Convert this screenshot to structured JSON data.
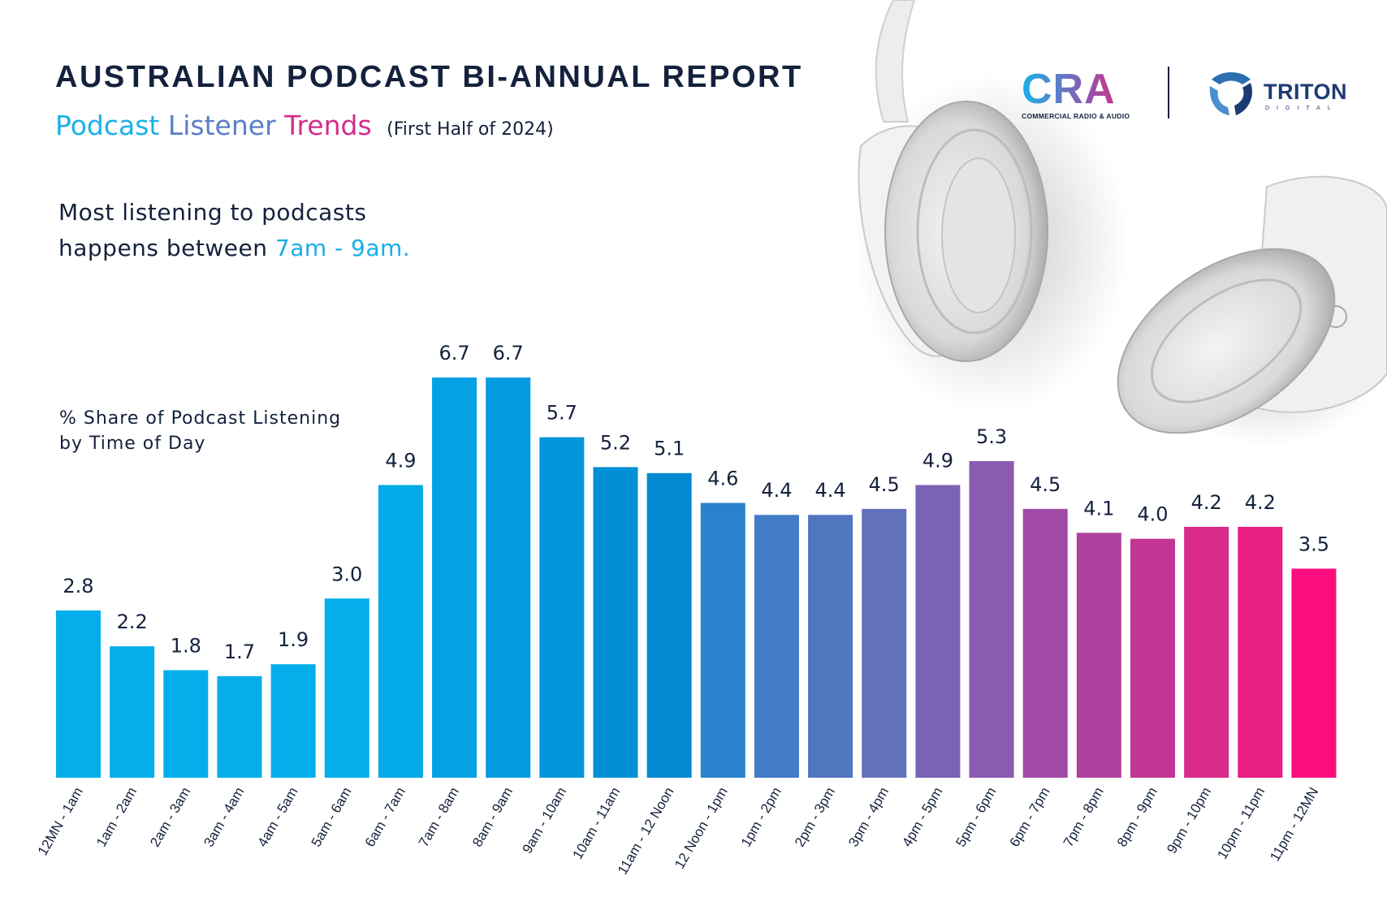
{
  "header": {
    "title": "AUSTRALIAN PODCAST BI-ANNUAL REPORT",
    "subtitle_words": [
      "Podcast",
      "Listener",
      "Trends"
    ],
    "subtitle_note": "(First Half of 2024)",
    "headline_line1": "Most listening to podcasts",
    "headline_line2_prefix": "happens between ",
    "headline_line2_accent": "7am - 9am."
  },
  "logos": {
    "cra_text": "CRA",
    "cra_sub": "COMMERCIAL RADIO & AUDIO",
    "triton_text": "TRITON",
    "triton_sub": "DIGITAL"
  },
  "colors": {
    "gradient_start": "#03aeeb",
    "gradient_mid": "#0288d1",
    "gradient_purple": "#8a5bb0",
    "gradient_end": "#fc0d7e",
    "text": "#14213d",
    "accent": "#16aee8"
  },
  "chart_data": {
    "type": "bar",
    "ylabel": "% Share of Podcast Listening by Time of Day",
    "ylim": [
      0,
      6.7
    ],
    "grid": false,
    "categories": [
      "12MN - 1am",
      "1am - 2am",
      "2am - 3am",
      "3am - 4am",
      "4am - 5am",
      "5am - 6am",
      "6am - 7am",
      "7am - 8am",
      "8am - 9am",
      "9am - 10am",
      "10am - 11am",
      "11am - 12 Noon",
      "12 Noon - 1pm",
      "1pm - 2pm",
      "2pm - 3pm",
      "3pm - 4pm",
      "4pm - 5pm",
      "5pm - 6pm",
      "6pm - 7pm",
      "7pm - 8pm",
      "8pm - 9pm",
      "9pm - 10pm",
      "10pm - 11pm",
      "11pm - 12MN"
    ],
    "values": [
      2.8,
      2.2,
      1.8,
      1.7,
      1.9,
      3.0,
      4.9,
      6.7,
      6.7,
      5.7,
      5.2,
      5.1,
      4.6,
      4.4,
      4.4,
      4.5,
      4.9,
      5.3,
      4.5,
      4.1,
      4.0,
      4.2,
      4.2,
      3.5
    ],
    "value_labels": [
      "2.8",
      "2.2",
      "1.8",
      "1.7",
      "1.9",
      "3.0",
      "4.9",
      "6.7",
      "6.7",
      "5.7",
      "5.2",
      "5.1",
      "4.6",
      "4.4",
      "4.4",
      "4.5",
      "4.9",
      "5.3",
      "4.5",
      "4.1",
      "4.0",
      "4.2",
      "4.2",
      "3.5"
    ],
    "bar_colors": [
      "#03aeeb",
      "#03aeeb",
      "#03aeeb",
      "#03aeeb",
      "#03aeeb",
      "#03aeeb",
      "#03a9e8",
      "#03a2e4",
      "#039ce0",
      "#0296dc",
      "#028fd6",
      "#0289d1",
      "#2b82cc",
      "#437cc6",
      "#5176c0",
      "#6172bb",
      "#7a62b4",
      "#8a5bb0",
      "#a04aa6",
      "#b0409e",
      "#c23595",
      "#d82b8a",
      "#e91e82",
      "#fc0d7e"
    ]
  }
}
